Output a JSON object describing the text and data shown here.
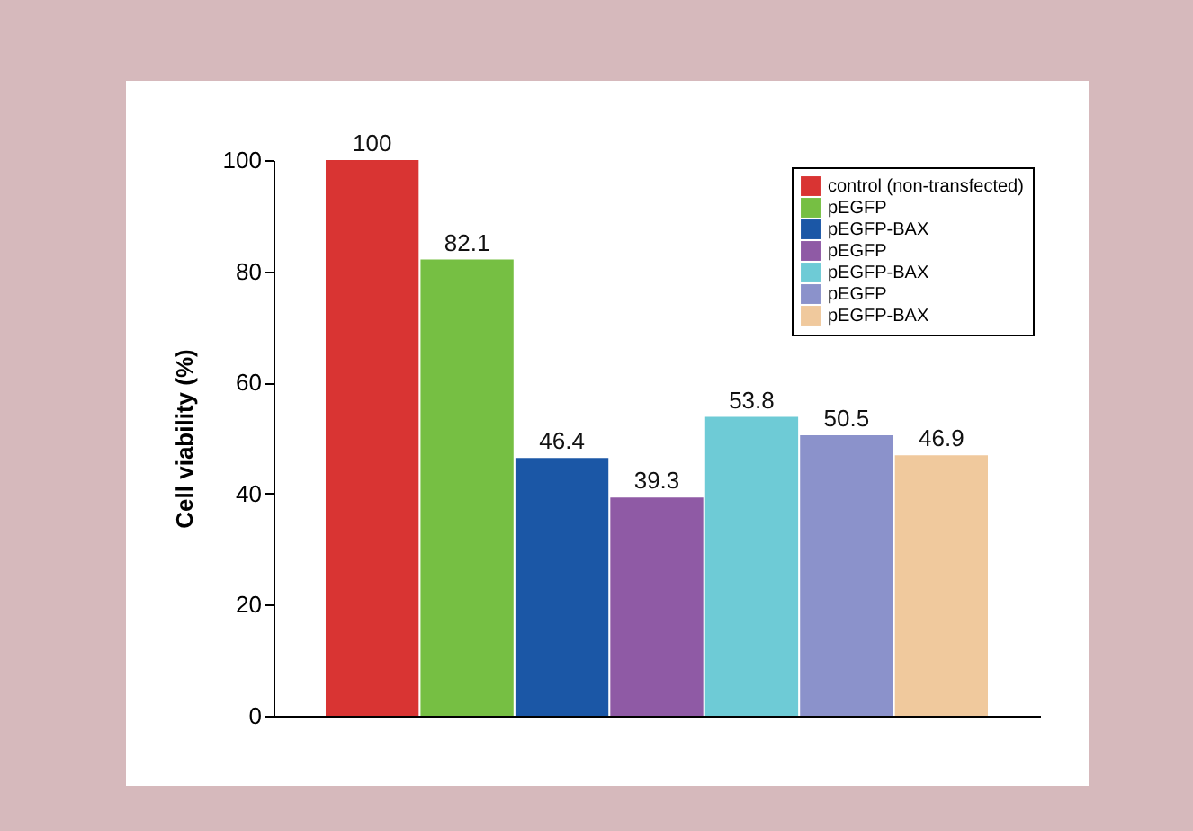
{
  "chart_data": {
    "type": "bar",
    "ylabel": "Cell viability (%)",
    "categories": [
      null,
      null,
      null,
      null,
      null,
      null,
      null
    ],
    "series": [
      {
        "name": "control (non-transfected)",
        "color": "#d93433",
        "values": [
          100,
          null,
          null,
          null,
          null,
          null,
          null
        ]
      },
      {
        "name": "pEGFP",
        "color": "#76bf43",
        "values": [
          null,
          82.1,
          null,
          null,
          null,
          null,
          null
        ]
      },
      {
        "name": "pEGFP-BAX",
        "color": "#1b57a6",
        "values": [
          null,
          null,
          46.4,
          null,
          null,
          null,
          null
        ]
      },
      {
        "name": "pEGFP",
        "color": "#8f5aa5",
        "values": [
          null,
          null,
          null,
          39.3,
          null,
          null,
          null
        ]
      },
      {
        "name": "pEGFP-BAX",
        "color": "#6ecbd6",
        "values": [
          null,
          null,
          null,
          null,
          53.8,
          null,
          null
        ]
      },
      {
        "name": "pEGFP",
        "color": "#8b92cb",
        "values": [
          null,
          null,
          null,
          null,
          null,
          50.5,
          null
        ]
      },
      {
        "name": "pEGFP-BAX",
        "color": "#f0c99d",
        "values": [
          null,
          null,
          null,
          null,
          null,
          null,
          46.9
        ]
      }
    ],
    "ylim": [
      0,
      100
    ],
    "yticks": [
      0,
      20,
      40,
      60,
      80,
      100
    ],
    "data_labels": true,
    "legend": "top right"
  }
}
